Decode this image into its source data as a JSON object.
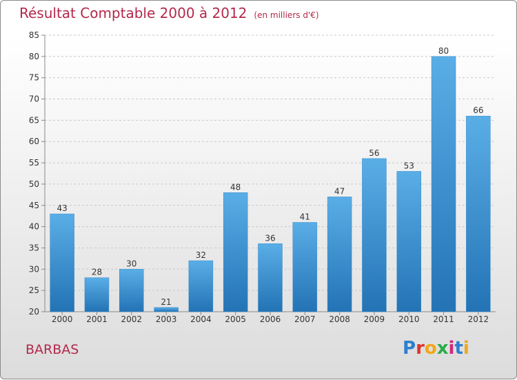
{
  "title": "Résultat Comptable 2000 à 2012",
  "unit": "(en milliers d'€)",
  "commune": "BARBAS",
  "logo": {
    "letters": [
      "P",
      "r",
      "o",
      "x",
      "i",
      "t",
      "i"
    ],
    "colors": [
      "#2b7fd0",
      "#e0342b",
      "#f0a81b",
      "#2bab4a",
      "#d0287a",
      "#2b7fd0",
      "#f0a81b"
    ]
  },
  "colors": {
    "bar_top": "#5aaee6",
    "bar_bottom": "#2373b5",
    "title": "#b3284a"
  },
  "chart_data": {
    "type": "bar",
    "categories": [
      "2000",
      "2001",
      "2002",
      "2003",
      "2004",
      "2005",
      "2006",
      "2007",
      "2008",
      "2009",
      "2010",
      "2011",
      "2012"
    ],
    "values": [
      43,
      28,
      30,
      21,
      32,
      48,
      36,
      41,
      47,
      56,
      53,
      80,
      66
    ],
    "ylim": [
      20,
      85
    ],
    "yticks": [
      20,
      25,
      30,
      35,
      40,
      45,
      50,
      55,
      60,
      65,
      70,
      75,
      80,
      85
    ],
    "title": "Résultat Comptable 2000 à 2012",
    "xlabel": "",
    "ylabel": ""
  }
}
